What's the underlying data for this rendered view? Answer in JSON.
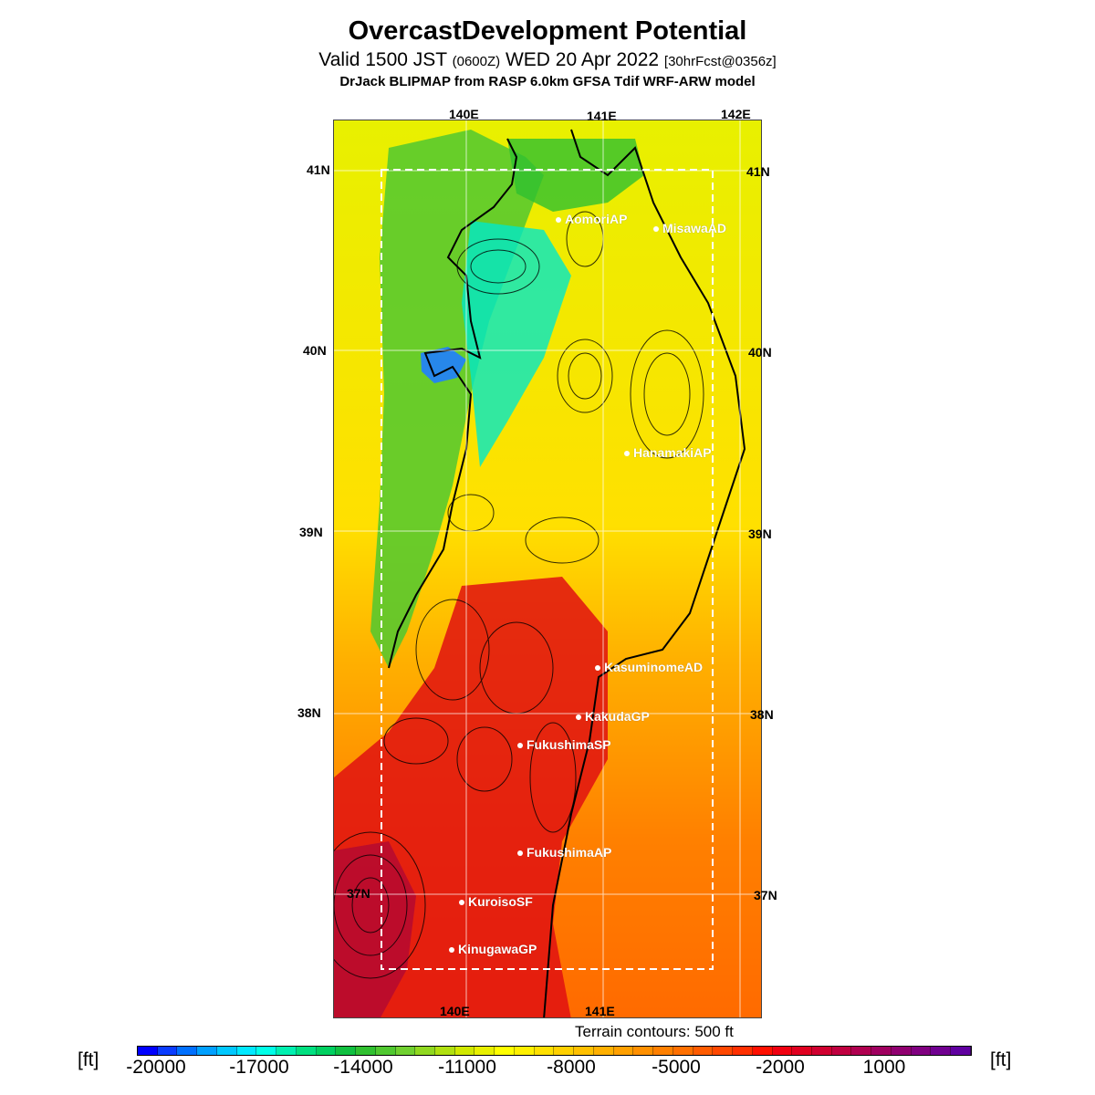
{
  "header": {
    "title": "OvercastDevelopment Potential",
    "valid": "Valid 1500 JST",
    "valid_z": "(0600Z)",
    "date": "WED 20 Apr 2022",
    "fcst": "[30hrFcst@0356z]",
    "model": "DrJack BLIPMAP from RASP 6.0km GFSA Tdif WRF-ARW model"
  },
  "map": {
    "lon_top": [
      "140E",
      "141E",
      "142E"
    ],
    "lon_bottom": [
      "140E",
      "141E"
    ],
    "lat_left": [
      "41N",
      "40N",
      "39N",
      "38N",
      "37N"
    ],
    "lat_right": [
      "41N",
      "40N",
      "39N",
      "38N",
      "37N"
    ],
    "points": [
      {
        "name": "AomoriAP"
      },
      {
        "name": "MisawaAD"
      },
      {
        "name": "HanamakiAP"
      },
      {
        "name": "KasuminomeAD"
      },
      {
        "name": "KakudaGP"
      },
      {
        "name": "FukushimaSP"
      },
      {
        "name": "FukushimaAP"
      },
      {
        "name": "KuroisoSF"
      },
      {
        "name": "KinugawaGP"
      }
    ]
  },
  "terrain_note": "Terrain contours: 500 ft",
  "colorbar": {
    "unit": "[ft]",
    "ticks": [
      "-20000",
      "-17000",
      "-14000",
      "-11000",
      "-8000",
      "-5000",
      "-2000",
      "1000"
    ],
    "colors": [
      "#0000ff",
      "#0a3cff",
      "#0070ff",
      "#00a0ff",
      "#00c8ff",
      "#00e8ff",
      "#00ffe8",
      "#00f0b0",
      "#00e080",
      "#00d060",
      "#10c040",
      "#30c030",
      "#50c830",
      "#70d030",
      "#90d820",
      "#b0e010",
      "#d0e800",
      "#e8f000",
      "#ffff00",
      "#fff000",
      "#ffe000",
      "#ffd000",
      "#ffc000",
      "#ffb000",
      "#ffa000",
      "#ff9000",
      "#ff8000",
      "#ff7000",
      "#ff5c00",
      "#ff4800",
      "#ff3000",
      "#ff1000",
      "#f00010",
      "#e00020",
      "#d00030",
      "#c00040",
      "#b00050",
      "#a00060",
      "#900070",
      "#800080",
      "#700090",
      "#6000a0"
    ]
  }
}
